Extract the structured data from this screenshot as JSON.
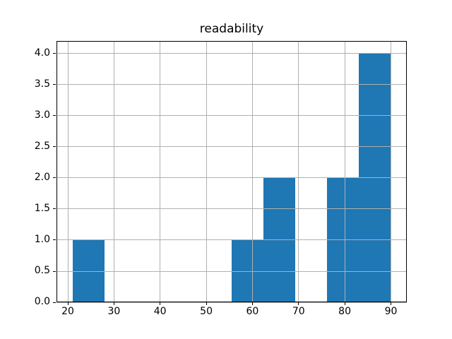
{
  "chart_data": {
    "type": "bar",
    "subtype": "histogram",
    "title": "readability",
    "xlabel": "",
    "ylabel": "",
    "bin_edges": [
      21.0,
      27.9,
      34.8,
      41.7,
      48.6,
      55.5,
      62.4,
      69.3,
      76.2,
      83.1,
      90.0
    ],
    "counts": [
      1,
      0,
      0,
      0,
      0,
      1,
      2,
      0,
      2,
      4
    ],
    "x_ticks": [
      "20",
      "30",
      "40",
      "50",
      "60",
      "70",
      "80",
      "90"
    ],
    "y_ticks": [
      "0.0",
      "0.5",
      "1.0",
      "1.5",
      "2.0",
      "2.5",
      "3.0",
      "3.5",
      "4.0"
    ],
    "xlim": [
      17.55,
      93.45
    ],
    "ylim": [
      0,
      4.2
    ],
    "grid": true,
    "legend": "none",
    "bar_color": "#1f77b4",
    "grid_color": "#b0b0b0",
    "spine_color": "#000000",
    "background_color": "#ffffff"
  }
}
